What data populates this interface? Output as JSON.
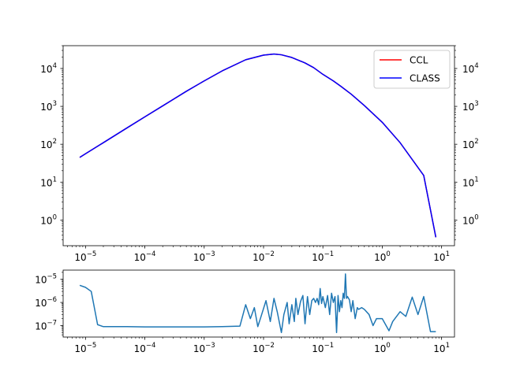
{
  "chart_data": [
    {
      "type": "line",
      "title": "",
      "xlabel": "",
      "ylabel": "",
      "xscale": "log",
      "yscale": "log",
      "xlim": [
        4.2e-06,
        16.5
      ],
      "ylim": [
        0.21,
        40000
      ],
      "grid": false,
      "legend": {
        "placement": "top-right",
        "entries": [
          "CCL",
          "CLASS"
        ]
      },
      "right_axis_ticklabels": true,
      "x_ticks": [
        {
          "value": 1e-05,
          "label": "10",
          "exp": "−5"
        },
        {
          "value": 0.0001,
          "label": "10",
          "exp": "−4"
        },
        {
          "value": 0.001,
          "label": "10",
          "exp": "−3"
        },
        {
          "value": 0.01,
          "label": "10",
          "exp": "−2"
        },
        {
          "value": 0.1,
          "label": "10",
          "exp": "−1"
        },
        {
          "value": 1,
          "label": "10",
          "exp": "0"
        },
        {
          "value": 10,
          "label": "10",
          "exp": "1"
        }
      ],
      "y_ticks": [
        {
          "value": 1,
          "label": "10",
          "exp": "0"
        },
        {
          "value": 10,
          "label": "10",
          "exp": "1"
        },
        {
          "value": 100,
          "label": "10",
          "exp": "2"
        },
        {
          "value": 1000,
          "label": "10",
          "exp": "3"
        },
        {
          "value": 10000,
          "label": "10",
          "exp": "4"
        }
      ],
      "series": [
        {
          "name": "CCL",
          "color": "#ff0000",
          "x": [
            8e-06,
            1e-05,
            2e-05,
            5e-05,
            0.0001,
            0.0002,
            0.0005,
            0.001,
            0.002,
            0.005,
            0.01,
            0.015,
            0.02,
            0.03,
            0.05,
            0.07,
            0.1,
            0.15,
            0.2,
            0.3,
            0.5,
            1,
            2,
            5,
            8
          ],
          "y": [
            45,
            56,
            110,
            270,
            530,
            1030,
            2500,
            4700,
            8600,
            17000,
            22500,
            24000,
            23000,
            19500,
            14000,
            10500,
            7000,
            4700,
            3400,
            2100,
            1050,
            380,
            110,
            15,
            0.35
          ]
        },
        {
          "name": "CLASS",
          "color": "#0000ff",
          "x": [
            8e-06,
            1e-05,
            2e-05,
            5e-05,
            0.0001,
            0.0002,
            0.0005,
            0.001,
            0.002,
            0.005,
            0.01,
            0.015,
            0.02,
            0.03,
            0.05,
            0.07,
            0.1,
            0.15,
            0.2,
            0.3,
            0.5,
            1,
            2,
            5,
            8
          ],
          "y": [
            45,
            56,
            110,
            270,
            530,
            1030,
            2500,
            4700,
            8600,
            17000,
            22500,
            24000,
            23000,
            19500,
            14000,
            10500,
            7000,
            4700,
            3400,
            2100,
            1050,
            380,
            110,
            15,
            0.35
          ]
        }
      ]
    },
    {
      "type": "line",
      "title": "",
      "xlabel": "",
      "ylabel": "",
      "xscale": "log",
      "yscale": "log",
      "xlim": [
        4.2e-06,
        16.5
      ],
      "ylim": [
        3.2e-08,
        2.5e-05
      ],
      "grid": false,
      "x_ticks": [
        {
          "value": 1e-05,
          "label": "10",
          "exp": "−5"
        },
        {
          "value": 0.0001,
          "label": "10",
          "exp": "−4"
        },
        {
          "value": 0.001,
          "label": "10",
          "exp": "−3"
        },
        {
          "value": 0.01,
          "label": "10",
          "exp": "−2"
        },
        {
          "value": 0.1,
          "label": "10",
          "exp": "−1"
        },
        {
          "value": 1,
          "label": "10",
          "exp": "0"
        },
        {
          "value": 10,
          "label": "10",
          "exp": "1"
        }
      ],
      "y_ticks": [
        {
          "value": 1e-07,
          "label": "10",
          "exp": "−7"
        },
        {
          "value": 1e-06,
          "label": "10",
          "exp": "−6"
        },
        {
          "value": 1e-05,
          "label": "10",
          "exp": "−5"
        }
      ],
      "series": [
        {
          "color": "#1f77b4",
          "x": [
            8e-06,
            1e-05,
            1.25e-05,
            1.6e-05,
            2e-05,
            5e-05,
            0.0001,
            0.0003,
            0.001,
            0.002,
            0.004,
            0.005,
            0.006,
            0.007,
            0.008,
            0.009,
            0.011,
            0.013,
            0.015,
            0.017,
            0.02,
            0.022,
            0.025,
            0.027,
            0.03,
            0.033,
            0.035,
            0.038,
            0.042,
            0.046,
            0.05,
            0.055,
            0.06,
            0.065,
            0.07,
            0.075,
            0.08,
            0.085,
            0.09,
            0.095,
            0.1,
            0.11,
            0.12,
            0.13,
            0.14,
            0.15,
            0.16,
            0.17,
            0.18,
            0.19,
            0.2,
            0.21,
            0.22,
            0.23,
            0.24,
            0.25,
            0.26,
            0.28,
            0.3,
            0.32,
            0.35,
            0.38,
            0.4,
            0.45,
            0.5,
            0.6,
            0.7,
            0.8,
            1.0,
            1.3,
            1.5,
            2.0,
            2.5,
            3.2,
            4.0,
            5.0,
            6.5,
            8.0
          ],
          "y": [
            5.5e-06,
            4.5e-06,
            3e-06,
            1.1e-07,
            9e-08,
            9e-08,
            8.8e-08,
            8.8e-08,
            8.8e-08,
            9e-08,
            9.5e-08,
            8e-07,
            2e-07,
            6e-07,
            9e-08,
            2.3e-07,
            1.2e-06,
            1.5e-07,
            1.5e-06,
            4e-07,
            5e-08,
            3e-07,
            1e-06,
            1.2e-07,
            8e-07,
            1.5e-07,
            1.5e-06,
            3e-07,
            1.1e-06,
            2e-06,
            1.2e-07,
            1.8e-06,
            3e-07,
            1.2e-06,
            1.5e-06,
            1e-06,
            1.5e-06,
            8e-07,
            4e-06,
            9e-07,
            1.8e-06,
            6e-07,
            2e-06,
            3e-07,
            2.5e-06,
            1e-06,
            1.8e-06,
            5e-08,
            2e-06,
            4e-07,
            1.2e-06,
            6e-07,
            2.5e-06,
            1.5e-06,
            1.7e-05,
            1.5e-06,
            1.8e-06,
            1.3e-06,
            4e-07,
            1.2e-06,
            2e-07,
            6e-07,
            5e-07,
            6e-07,
            5e-07,
            3e-07,
            1e-07,
            2e-07,
            2e-07,
            6e-08,
            1.5e-07,
            4e-07,
            2.5e-07,
            1.7e-06,
            3e-07,
            1.8e-06,
            5.5e-08,
            5.5e-08
          ]
        }
      ]
    }
  ]
}
